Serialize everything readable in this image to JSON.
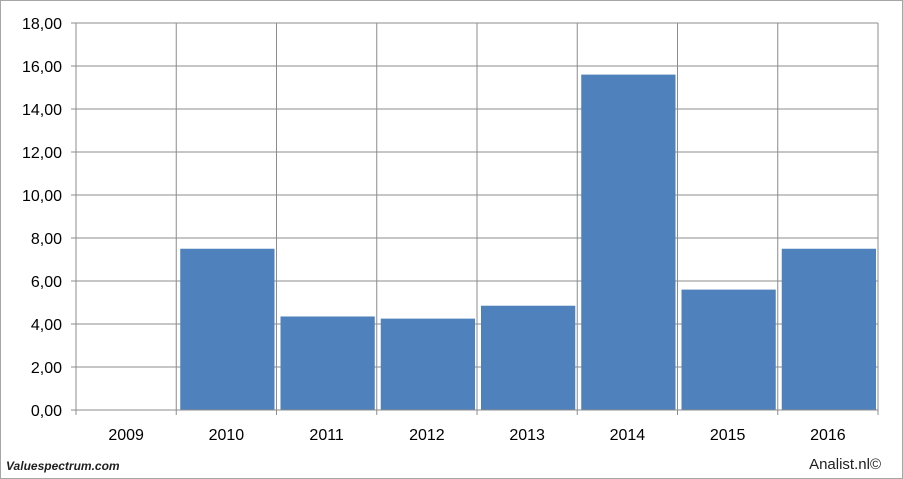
{
  "chart_data": {
    "type": "bar",
    "categories": [
      "2009",
      "2010",
      "2011",
      "2012",
      "2013",
      "2014",
      "2015",
      "2016"
    ],
    "values": [
      0,
      7.5,
      4.35,
      4.25,
      4.85,
      15.6,
      5.6,
      7.5
    ],
    "ylim": [
      0,
      18
    ],
    "ytick_labels": [
      "0,00",
      "2,00",
      "4,00",
      "6,00",
      "8,00",
      "10,00",
      "12,00",
      "14,00",
      "16,00",
      "18,00"
    ],
    "grid": true,
    "bar_color": "#4f81bd"
  },
  "footer": {
    "source_left": "Valuespectrum.com",
    "source_right": "Analist.nl©"
  }
}
